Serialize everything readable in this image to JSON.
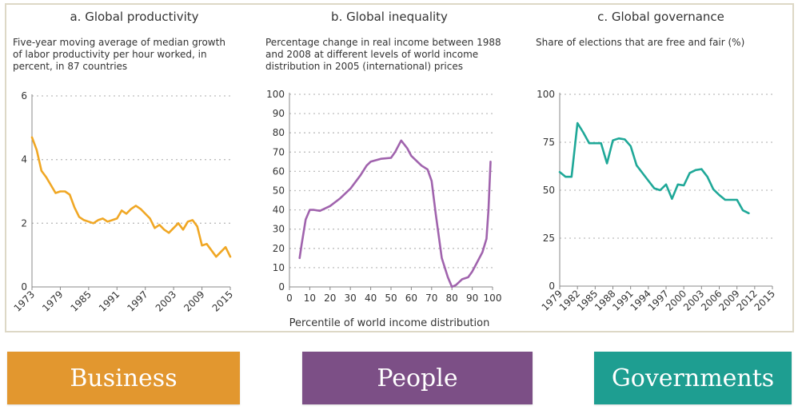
{
  "buttons": {
    "business": {
      "label": "Business",
      "color": "#e2972f"
    },
    "people": {
      "label": "People",
      "color": "#7c4f86"
    },
    "governments": {
      "label": "Governments",
      "color": "#1e9e91"
    }
  },
  "chart_data": [
    {
      "type": "line",
      "title": "a. Global productivity",
      "subtitle": "Five-year moving average of median growth of labor productivity per hour worked, in percent, in 87 countries",
      "color": "#f0a724",
      "ylim": [
        0,
        6
      ],
      "yticks": [
        0,
        2,
        4,
        6
      ],
      "xlim": [
        1973,
        2015
      ],
      "xticks": [
        "1973",
        "1979",
        "1985",
        "1991",
        "1997",
        "2003",
        "2009",
        "2015"
      ],
      "xtick_values": [
        1973,
        1979,
        1985,
        1991,
        1997,
        2003,
        2009,
        2015
      ],
      "grid": "horizontal dotted",
      "x": [
        1973,
        1974,
        1975,
        1976,
        1977,
        1978,
        1979,
        1980,
        1981,
        1982,
        1983,
        1984,
        1985,
        1986,
        1987,
        1988,
        1989,
        1990,
        1991,
        1992,
        1993,
        1994,
        1995,
        1996,
        1997,
        1998,
        1999,
        2000,
        2001,
        2002,
        2003,
        2004,
        2005,
        2006,
        2007,
        2008,
        2009,
        2010,
        2011,
        2012,
        2013,
        2014,
        2015
      ],
      "values": [
        4.7,
        4.3,
        3.65,
        3.45,
        3.2,
        2.95,
        3.0,
        3.0,
        2.9,
        2.5,
        2.2,
        2.1,
        2.05,
        2.0,
        2.1,
        2.15,
        2.05,
        2.1,
        2.15,
        2.4,
        2.3,
        2.45,
        2.55,
        2.45,
        2.3,
        2.15,
        1.85,
        1.95,
        1.8,
        1.7,
        1.85,
        2.0,
        1.8,
        2.05,
        2.1,
        1.9,
        1.3,
        1.35,
        1.15,
        0.95,
        1.1,
        1.25,
        0.95
      ]
    },
    {
      "type": "line",
      "title": "b. Global inequality",
      "subtitle": "Percentage change in real income between 1988 and 2008 at different levels of world income distribution in 2005 (international) prices",
      "xlabel": "Percentile of world income distribution",
      "color": "#a063ad",
      "ylim": [
        0,
        100
      ],
      "yticks": [
        0,
        10,
        20,
        30,
        40,
        50,
        60,
        70,
        80,
        90,
        100
      ],
      "xlim": [
        0,
        100
      ],
      "xticks": [
        "0",
        "10",
        "20",
        "30",
        "40",
        "50",
        "60",
        "70",
        "80",
        "90",
        "100"
      ],
      "xtick_values": [
        0,
        10,
        20,
        30,
        40,
        50,
        60,
        70,
        80,
        90,
        100
      ],
      "grid": "horizontal dotted",
      "x": [
        5,
        6,
        8,
        10,
        12,
        15,
        20,
        25,
        30,
        35,
        38,
        40,
        45,
        50,
        52,
        55,
        58,
        60,
        65,
        68,
        70,
        72,
        75,
        78,
        80,
        82,
        85,
        88,
        90,
        92,
        95,
        97,
        98,
        99
      ],
      "values": [
        15,
        22,
        35,
        40,
        40,
        39.5,
        42,
        46,
        51,
        58,
        63,
        65,
        66.5,
        67,
        70,
        76,
        72,
        68,
        63,
        61,
        55,
        38,
        15,
        5,
        0,
        1,
        4,
        5,
        8,
        12,
        18,
        25,
        40,
        65
      ]
    },
    {
      "type": "line",
      "title": "c. Global governance",
      "subtitle": "Share of elections that are free and fair (%)",
      "color": "#1fa898",
      "ylim": [
        0,
        100
      ],
      "yticks": [
        0,
        25,
        50,
        75,
        100
      ],
      "xlim": [
        1979,
        2015
      ],
      "xticks": [
        "1979",
        "1982",
        "1985",
        "1988",
        "1991",
        "1994",
        "1997",
        "2000",
        "2003",
        "2006",
        "2009",
        "2012",
        "2015"
      ],
      "xtick_values": [
        1979,
        1982,
        1985,
        1988,
        1991,
        1994,
        1997,
        2000,
        2003,
        2006,
        2009,
        2012,
        2015
      ],
      "grid": "horizontal dotted",
      "x": [
        1979,
        1980,
        1981,
        1982,
        1983,
        1984,
        1985,
        1986,
        1987,
        1988,
        1989,
        1990,
        1991,
        1992,
        1993,
        1994,
        1995,
        1996,
        1997,
        1998,
        1999,
        2000,
        2001,
        2002,
        2003,
        2004,
        2005,
        2006,
        2007,
        2008,
        2009,
        2010,
        2011
      ],
      "values": [
        59.5,
        57,
        57,
        85,
        80,
        74.5,
        74.5,
        74.5,
        64,
        76,
        77,
        76.5,
        73,
        63,
        59,
        55,
        51,
        50,
        53,
        45.5,
        53,
        52.5,
        59,
        60.5,
        61,
        57,
        50.5,
        47.5,
        45,
        45,
        45,
        39.5,
        38
      ]
    }
  ]
}
